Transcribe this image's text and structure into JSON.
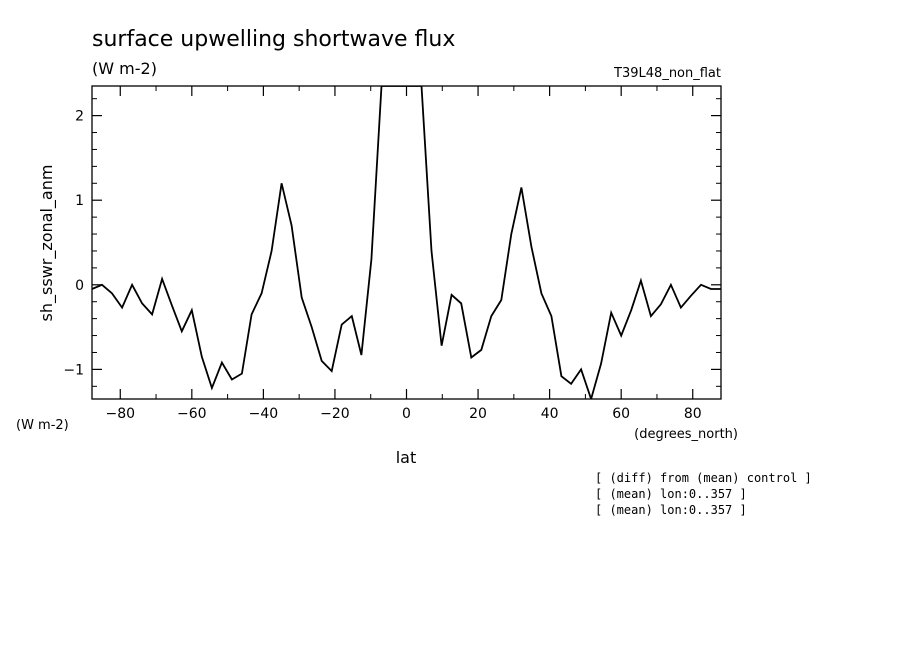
{
  "chart_data": {
    "type": "line",
    "title": "surface upwelling shortwave flux",
    "units": "(W m-2)",
    "run_label": "T39L48_non_flat",
    "ylabel": "sh_sswr_zonal_anm",
    "yunits": "(W m-2)",
    "xlabel": "lat",
    "xunits": "(degrees_north)",
    "xlim": [
      -87.9,
      87.9
    ],
    "ylim": [
      -1.35,
      2.35
    ],
    "x_ticks": [
      -80,
      -60,
      -40,
      -20,
      0,
      20,
      40,
      60,
      80
    ],
    "x_tick_labels": [
      "−80",
      "−60",
      "−40",
      "−20",
      "0",
      "20",
      "40",
      "60",
      "80"
    ],
    "y_ticks": [
      -1,
      0,
      1,
      2
    ],
    "y_tick_labels": [
      "−1",
      "0",
      "1",
      "2"
    ],
    "grid": false,
    "series": [
      {
        "x": [
          -87.9,
          -85.1,
          -82.3,
          -79.5,
          -76.7,
          -73.9,
          -71.1,
          -68.3,
          -65.5,
          -62.8,
          -60.0,
          -57.2,
          -54.4,
          -51.6,
          -48.8,
          -46.0,
          -43.3,
          -40.5,
          -37.7,
          -34.9,
          -32.1,
          -29.3,
          -26.5,
          -23.7,
          -20.9,
          -18.1,
          -15.3,
          -12.6,
          -9.8,
          -7.0,
          -4.2,
          -1.4,
          1.4,
          4.2,
          7.0,
          9.8,
          12.6,
          15.3,
          18.1,
          20.9,
          23.7,
          26.5,
          29.3,
          32.1,
          34.9,
          37.7,
          40.5,
          43.3,
          46.0,
          48.8,
          51.6,
          54.4,
          57.2,
          60.0,
          62.8,
          65.5,
          68.3,
          71.1,
          73.9,
          76.7,
          79.5,
          82.3,
          85.1,
          87.9
        ],
        "y": [
          -0.05,
          0.0,
          -0.1,
          -0.27,
          0.0,
          -0.22,
          -0.35,
          0.07,
          -0.25,
          -0.55,
          -0.3,
          -0.85,
          -1.22,
          -0.92,
          -1.12,
          -1.05,
          -0.35,
          -0.1,
          0.4,
          1.2,
          0.7,
          -0.15,
          -0.5,
          -0.9,
          -1.02,
          -0.47,
          -0.37,
          -0.83,
          0.3,
          2.35,
          2.35,
          2.35,
          2.35,
          2.35,
          0.4,
          -0.72,
          -0.12,
          -0.22,
          -0.86,
          -0.77,
          -0.37,
          -0.18,
          0.6,
          1.15,
          0.45,
          -0.1,
          -0.37,
          -1.08,
          -1.17,
          -1.0,
          -1.35,
          -0.93,
          -0.33,
          -0.6,
          -0.3,
          0.05,
          -0.37,
          -0.23,
          0.0,
          -0.27,
          -0.13,
          0.0,
          -0.05,
          -0.05
        ]
      }
    ],
    "notes": [
      "[ (diff) from (mean) control ]",
      "[ (mean) lon:0..357 ]",
      "[ (mean) lon:0..357 ]"
    ]
  }
}
